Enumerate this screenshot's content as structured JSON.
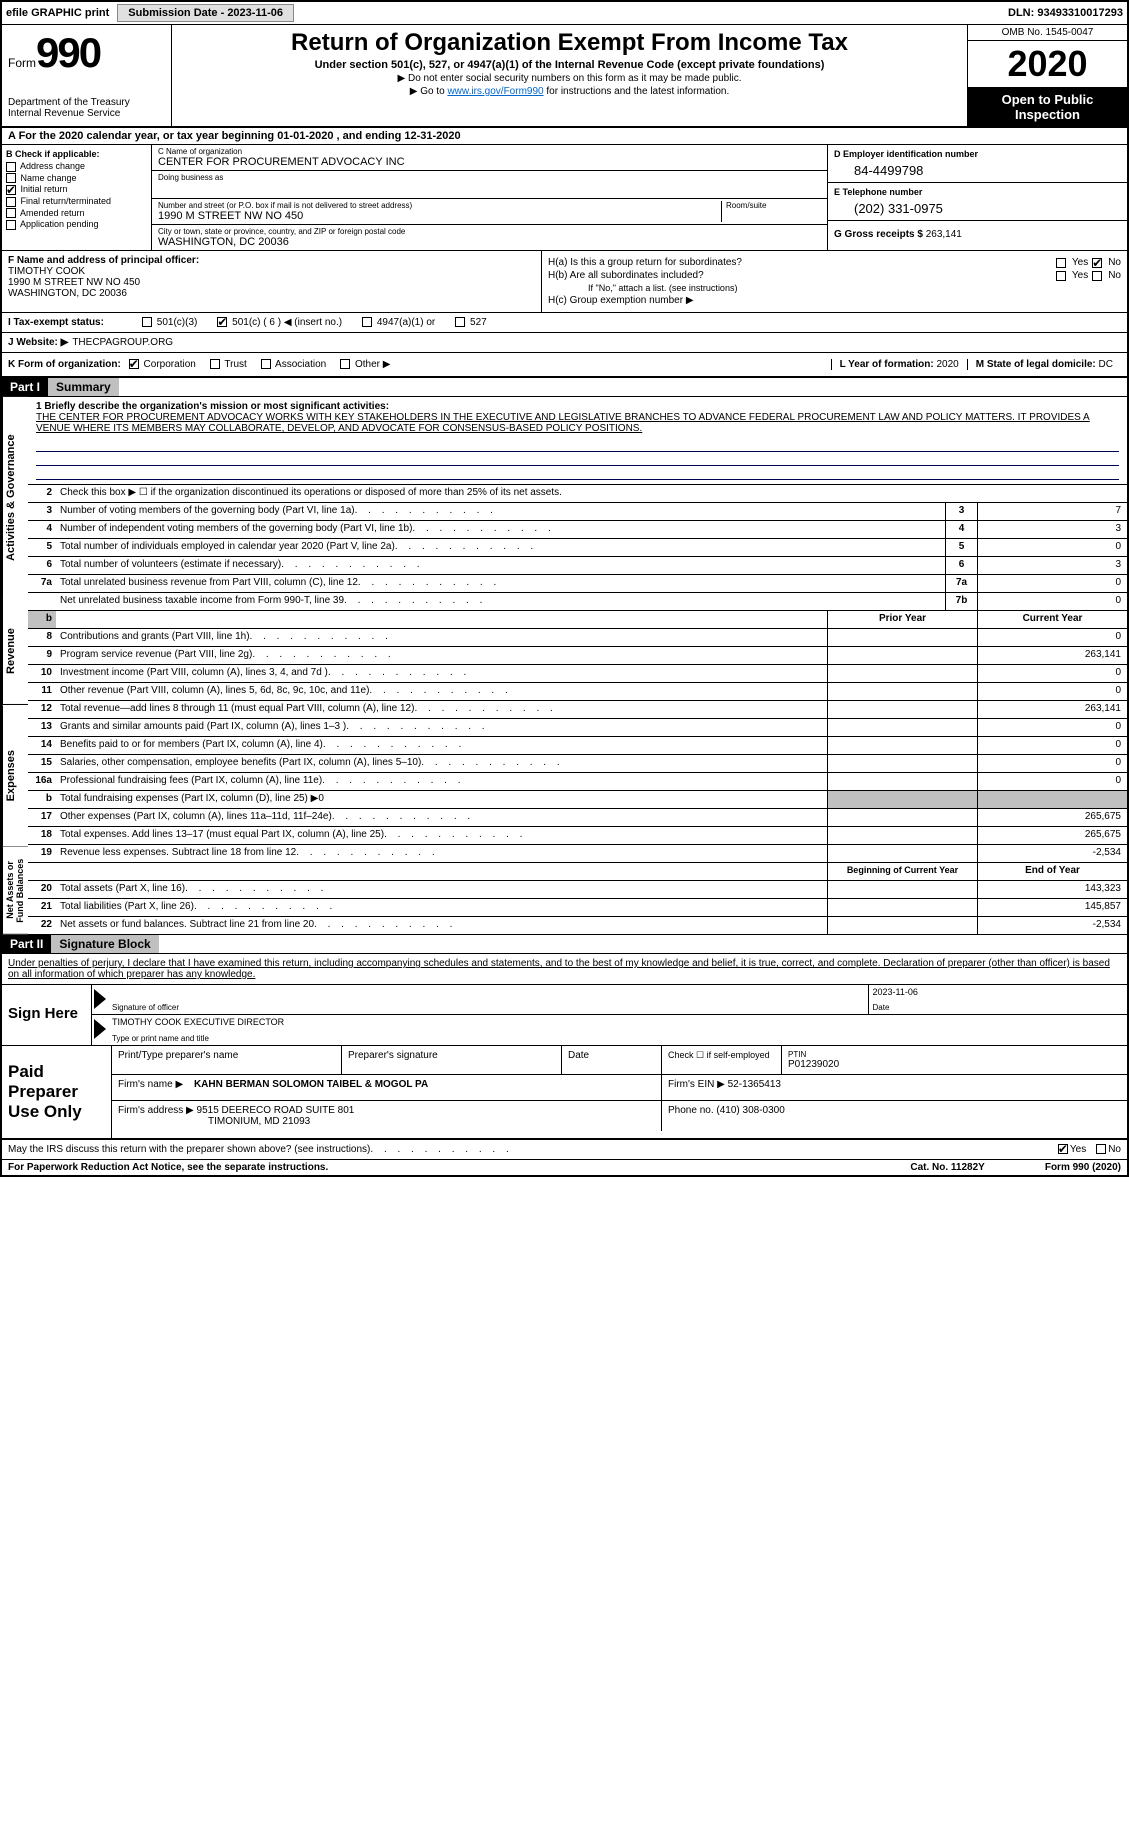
{
  "top_bar": {
    "efile": "efile GRAPHIC print",
    "submission_label": "Submission Date - 2023-11-06",
    "dln": "DLN: 93493310017293"
  },
  "header": {
    "form_word": "Form",
    "form_number": "990",
    "dept": "Department of the Treasury",
    "irs": "Internal Revenue Service",
    "title": "Return of Organization Exempt From Income Tax",
    "subtitle": "Under section 501(c), 527, or 4947(a)(1) of the Internal Revenue Code (except private foundations)",
    "note1": "▶ Do not enter social security numbers on this form as it may be made public.",
    "note2_pre": "▶ Go to ",
    "note2_link": "www.irs.gov/Form990",
    "note2_post": " for instructions and the latest information.",
    "omb": "OMB No. 1545-0047",
    "year": "2020",
    "open": "Open to Public Inspection"
  },
  "period": "A For the 2020 calendar year, or tax year beginning 01-01-2020    , and ending 12-31-2020",
  "checkB": {
    "hdr": "B Check if applicable:",
    "items": [
      "Address change",
      "Name change",
      "Initial return",
      "Final return/terminated",
      "Amended return",
      "Application pending"
    ],
    "checked_idx": 2
  },
  "org": {
    "c_label": "C Name of organization",
    "name": "CENTER FOR PROCUREMENT ADVOCACY INC",
    "dba_label": "Doing business as",
    "addr_label": "Number and street (or P.O. box if mail is not delivered to street address)",
    "room_label": "Room/suite",
    "addr": "1990 M STREET NW NO 450",
    "city_label": "City or town, state or province, country, and ZIP or foreign postal code",
    "city": "WASHINGTON, DC  20036"
  },
  "right_col": {
    "d_label": "D Employer identification number",
    "ein": "84-4499798",
    "e_label": "E Telephone number",
    "phone": "(202) 331-0975",
    "g_label": "G Gross receipts $",
    "gross": "263,141"
  },
  "f_block": {
    "f_label": "F  Name and address of principal officer:",
    "name": "TIMOTHY COOK",
    "addr1": "1990 M STREET NW NO 450",
    "addr2": "WASHINGTON, DC  20036"
  },
  "h_block": {
    "ha": "H(a)  Is this a group return for subordinates?",
    "hb": "H(b)  Are all subordinates included?",
    "hb_note": "If \"No,\" attach a list. (see instructions)",
    "hc": "H(c)  Group exemption number ▶",
    "yes": "Yes",
    "no": "No"
  },
  "tax_status": {
    "i_label": "I   Tax-exempt status:",
    "opts": [
      "501(c)(3)",
      "501(c) ( 6 ) ◀ (insert no.)",
      "4947(a)(1) or",
      "527"
    ],
    "checked_idx": 1
  },
  "website": {
    "j_label": "J  Website: ▶",
    "val": "THECPAGROUP.ORG"
  },
  "k_row": {
    "label": "K Form of organization:",
    "opts": [
      "Corporation",
      "Trust",
      "Association",
      "Other ▶"
    ],
    "checked_idx": 0,
    "l_label": "L Year of formation:",
    "l_val": "2020",
    "m_label": "M State of legal domicile:",
    "m_val": "DC"
  },
  "part1": {
    "hdr": "Part I",
    "title": "Summary",
    "line1_label": "1  Briefly describe the organization's mission or most significant activities:",
    "mission": "THE CENTER FOR PROCUREMENT ADVOCACY WORKS WITH KEY STAKEHOLDERS IN THE EXECUTIVE AND LEGISLATIVE BRANCHES TO ADVANCE FEDERAL PROCUREMENT LAW AND POLICY MATTERS. IT PROVIDES A VENUE WHERE ITS MEMBERS MAY COLLABORATE, DEVELOP, AND ADVOCATE FOR CONSENSUS-BASED POLICY POSITIONS.",
    "vlabels": [
      "Activities & Governance",
      "Revenue",
      "Expenses",
      "Net Assets or Fund Balances"
    ],
    "gov_lines": [
      {
        "n": "2",
        "t": "Check this box ▶ ☐ if the organization discontinued its operations or disposed of more than 25% of its net assets."
      },
      {
        "n": "3",
        "t": "Number of voting members of the governing body (Part VI, line 1a)",
        "box": "3",
        "v": "7"
      },
      {
        "n": "4",
        "t": "Number of independent voting members of the governing body (Part VI, line 1b)",
        "box": "4",
        "v": "3"
      },
      {
        "n": "5",
        "t": "Total number of individuals employed in calendar year 2020 (Part V, line 2a)",
        "box": "5",
        "v": "0"
      },
      {
        "n": "6",
        "t": "Total number of volunteers (estimate if necessary)",
        "box": "6",
        "v": "3"
      },
      {
        "n": "7a",
        "t": "Total unrelated business revenue from Part VIII, column (C), line 12",
        "box": "7a",
        "v": "0"
      },
      {
        "n": "",
        "t": "Net unrelated business taxable income from Form 990-T, line 39",
        "box": "7b",
        "v": "0"
      }
    ],
    "col_hdrs": {
      "prior": "Prior Year",
      "current": "Current Year"
    },
    "rev_lines": [
      {
        "n": "8",
        "t": "Contributions and grants (Part VIII, line 1h)",
        "p": "",
        "c": "0"
      },
      {
        "n": "9",
        "t": "Program service revenue (Part VIII, line 2g)",
        "p": "",
        "c": "263,141"
      },
      {
        "n": "10",
        "t": "Investment income (Part VIII, column (A), lines 3, 4, and 7d )",
        "p": "",
        "c": "0"
      },
      {
        "n": "11",
        "t": "Other revenue (Part VIII, column (A), lines 5, 6d, 8c, 9c, 10c, and 11e)",
        "p": "",
        "c": "0"
      },
      {
        "n": "12",
        "t": "Total revenue—add lines 8 through 11 (must equal Part VIII, column (A), line 12)",
        "p": "",
        "c": "263,141"
      }
    ],
    "exp_lines": [
      {
        "n": "13",
        "t": "Grants and similar amounts paid (Part IX, column (A), lines 1–3 )",
        "p": "",
        "c": "0"
      },
      {
        "n": "14",
        "t": "Benefits paid to or for members (Part IX, column (A), line 4)",
        "p": "",
        "c": "0"
      },
      {
        "n": "15",
        "t": "Salaries, other compensation, employee benefits (Part IX, column (A), lines 5–10)",
        "p": "",
        "c": "0"
      },
      {
        "n": "16a",
        "t": "Professional fundraising fees (Part IX, column (A), line 11e)",
        "p": "",
        "c": "0"
      },
      {
        "n": "b",
        "t": "Total fundraising expenses (Part IX, column (D), line 25) ▶0",
        "gray": true
      },
      {
        "n": "17",
        "t": "Other expenses (Part IX, column (A), lines 11a–11d, 11f–24e)",
        "p": "",
        "c": "265,675"
      },
      {
        "n": "18",
        "t": "Total expenses. Add lines 13–17 (must equal Part IX, column (A), line 25)",
        "p": "",
        "c": "265,675"
      },
      {
        "n": "19",
        "t": "Revenue less expenses. Subtract line 18 from line 12",
        "p": "",
        "c": "-2,534"
      }
    ],
    "bal_hdrs": {
      "beg": "Beginning of Current Year",
      "end": "End of Year"
    },
    "bal_lines": [
      {
        "n": "20",
        "t": "Total assets (Part X, line 16)",
        "p": "",
        "c": "143,323"
      },
      {
        "n": "21",
        "t": "Total liabilities (Part X, line 26)",
        "p": "",
        "c": "145,857"
      },
      {
        "n": "22",
        "t": "Net assets or fund balances. Subtract line 21 from line 20",
        "p": "",
        "c": "-2,534"
      }
    ]
  },
  "part2": {
    "hdr": "Part II",
    "title": "Signature Block",
    "declaration": "Under penalties of perjury, I declare that I have examined this return, including accompanying schedules and statements, and to the best of my knowledge and belief, it is true, correct, and complete. Declaration of preparer (other than officer) is based on all information of which preparer has any knowledge.",
    "sign_here": "Sign Here",
    "sig_officer": "Signature of officer",
    "sig_date": "2023-11-06",
    "date_lbl": "Date",
    "officer_name": "TIMOTHY COOK  EXECUTIVE DIRECTOR",
    "type_name": "Type or print name and title",
    "paid_prep": "Paid Preparer Use Only",
    "prep_hdrs": [
      "Print/Type preparer's name",
      "Preparer's signature",
      "Date",
      "Check ☐ if self-employed",
      "PTIN"
    ],
    "ptin": "P01239020",
    "firm_name_lbl": "Firm's name    ▶",
    "firm_name": "KAHN BERMAN SOLOMON TAIBEL & MOGOL PA",
    "firm_ein_lbl": "Firm's EIN ▶",
    "firm_ein": "52-1365413",
    "firm_addr_lbl": "Firm's address ▶",
    "firm_addr1": "9515 DEERECO ROAD SUITE 801",
    "firm_addr2": "TIMONIUM, MD  21093",
    "phone_lbl": "Phone no.",
    "phone": "(410) 308-0300",
    "discuss": "May the IRS discuss this return with the preparer shown above? (see instructions)",
    "yes": "Yes",
    "no": "No"
  },
  "footer": {
    "paperwork": "For Paperwork Reduction Act Notice, see the separate instructions.",
    "cat": "Cat. No. 11282Y",
    "form": "Form 990 (2020)"
  }
}
